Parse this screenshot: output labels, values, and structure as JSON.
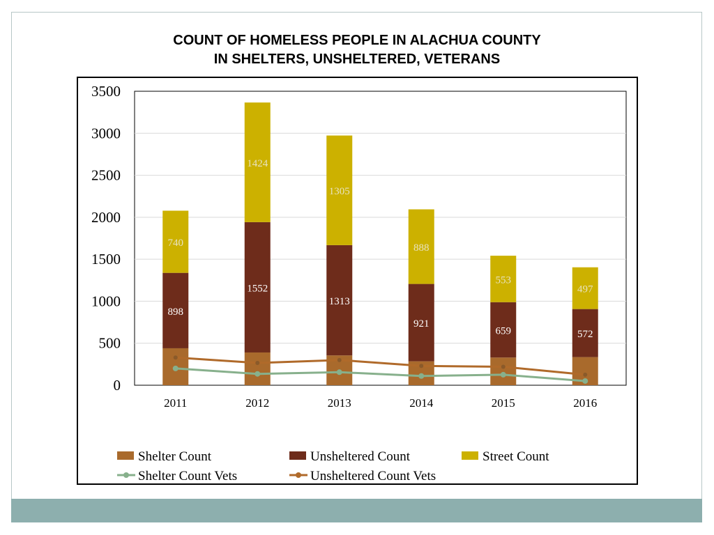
{
  "title": {
    "line1": "COUNT OF HOMELESS PEOPLE IN ALACHUA COUNTY",
    "line2": "IN SHELTERS, UNSHELTERED, VETERANS"
  },
  "colors": {
    "shelter": "#a96a2c",
    "unsheltered": "#6e2c1b",
    "street": "#ccb100",
    "shelter_vets": "#87b08c",
    "unsheltered_vets": "#b06a2a",
    "footer_bar": "#8dafae"
  },
  "chart_data": {
    "type": "bar",
    "stacked": true,
    "categories": [
      "2011",
      "2012",
      "2013",
      "2014",
      "2015",
      "2016"
    ],
    "ylim": [
      0,
      3500
    ],
    "yticks": [
      0,
      500,
      1000,
      1500,
      2000,
      2500,
      3000,
      3500
    ],
    "grid": true,
    "legend_position": "bottom",
    "series": [
      {
        "name": "Shelter Count",
        "type": "bar",
        "values": [
          440,
          390,
          355,
          285,
          330,
          335
        ]
      },
      {
        "name": "Unsheltered Count",
        "type": "bar",
        "values": [
          898,
          1552,
          1313,
          921,
          659,
          572
        ],
        "labels": [
          "898",
          "1552",
          "1313",
          "921",
          "659",
          "572"
        ]
      },
      {
        "name": "Street Count",
        "type": "bar",
        "values": [
          740,
          1424,
          1305,
          888,
          553,
          497
        ],
        "labels": [
          "740",
          "1424",
          "1305",
          "888",
          "553",
          "497"
        ]
      },
      {
        "name": "Shelter Count Vets",
        "type": "line",
        "values": [
          200,
          135,
          155,
          110,
          125,
          50
        ]
      },
      {
        "name": "Unsheltered Count Vets",
        "type": "line",
        "values": [
          330,
          265,
          300,
          230,
          220,
          125
        ]
      }
    ]
  }
}
